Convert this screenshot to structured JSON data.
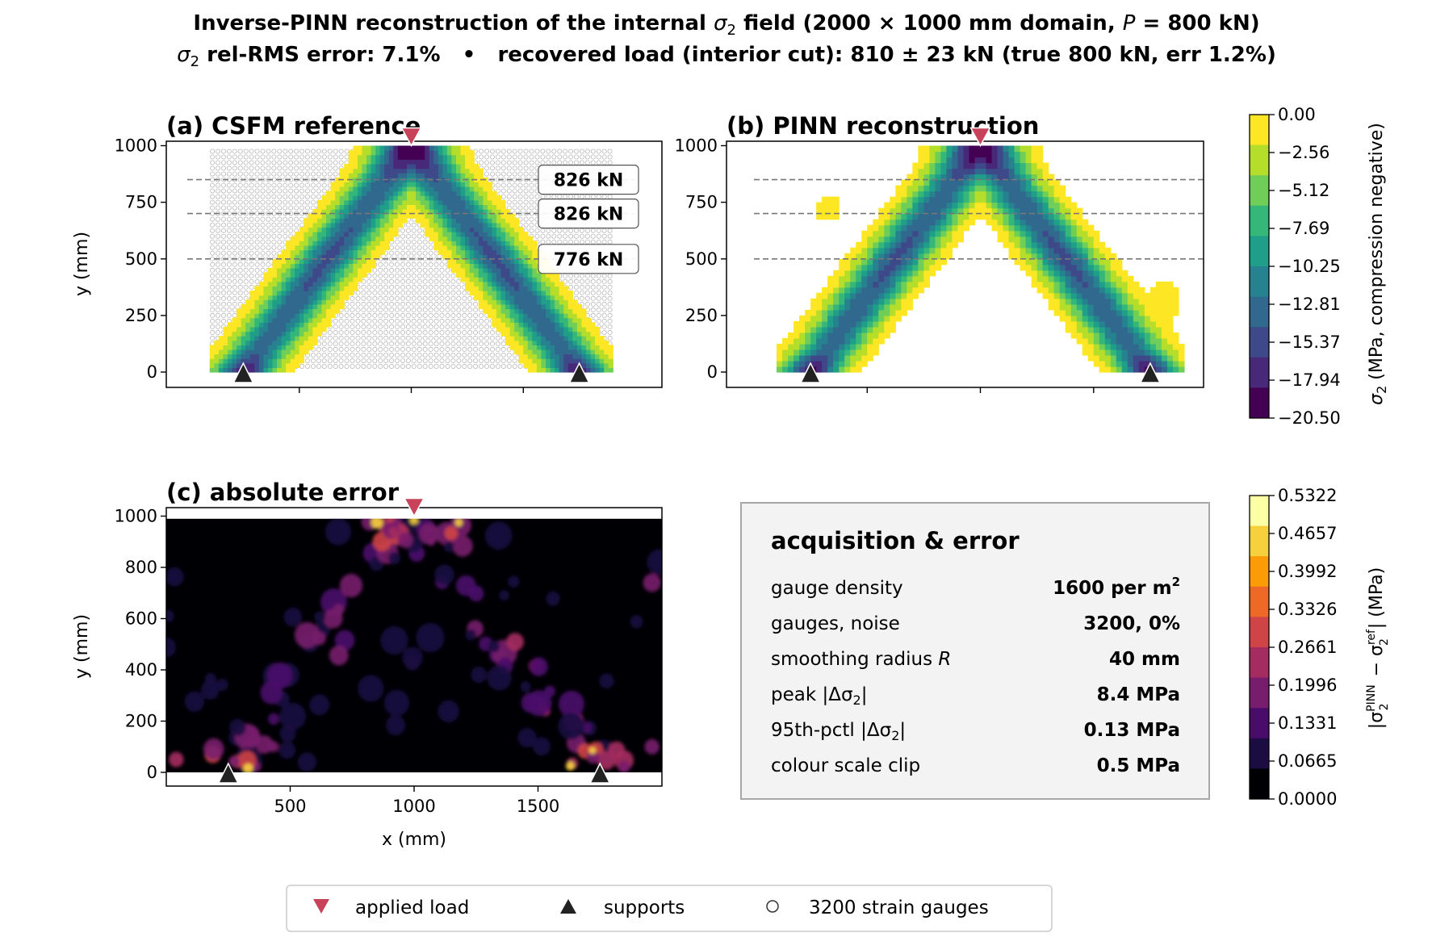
{
  "title": {
    "line1_pre": "Inverse-PINN reconstruction of the internal ",
    "line1_sym": "σ",
    "line1_sub": "2",
    "line1_post": " field (2000 × 1000 mm domain, ",
    "line1_p": "P",
    "line1_end": " = 800 kN)",
    "line2_sym": "σ",
    "line2_sub": "2",
    "line2_post": " rel-RMS error: 7.1%   •   recovered load (interior cut): 810 ± 23 kN (true 800 kN, err 1.2%)"
  },
  "panels": {
    "a": "(a)  CSFM reference",
    "b": "(b)  PINN reconstruction",
    "c": "(c)  absolute error"
  },
  "axes": {
    "ylabel": "y (mm)",
    "xlabel": "x (mm)"
  },
  "colorbar_stress": {
    "label_sym": "σ",
    "label_sub": "2",
    "label_post": " (MPa, compression negative)",
    "ticks": [
      "0.00",
      "−2.56",
      "−5.12",
      "−7.69",
      "−10.25",
      "−12.81",
      "−15.37",
      "−17.94",
      "−20.50"
    ]
  },
  "colorbar_error": {
    "label_pre": "|σ",
    "label_sup1": "PINN",
    "label_sub1": "2",
    "label_mid": " − σ",
    "label_sup2": "ref",
    "label_sub2": "2",
    "label_post": "| (MPa)",
    "ticks": [
      "0.5322",
      "0.4657",
      "0.3992",
      "0.3326",
      "0.2661",
      "0.1996",
      "0.1331",
      "0.0665",
      "0.0000"
    ]
  },
  "cut_labels": [
    "826 kN",
    "826 kN",
    "776 kN"
  ],
  "info_box": {
    "heading": "acquisition & error",
    "rows": [
      {
        "label": "gauge density",
        "value": "1600 per m",
        "value_sup": "2"
      },
      {
        "label": "gauges, noise",
        "value": "3200, 0%"
      },
      {
        "label_pre": "smoothing radius ",
        "label_ital": "R",
        "value": "40 mm"
      },
      {
        "label_pre": "peak |Δσ",
        "label_sub": "2",
        "label_post": "|",
        "value": "8.4 MPa"
      },
      {
        "label_pre": "95th-pctl |Δσ",
        "label_sub": "2",
        "label_post": "|",
        "value": "0.13 MPa"
      },
      {
        "label": "colour scale clip",
        "value": "0.5 MPa"
      }
    ]
  },
  "legend": {
    "load": "applied load",
    "supports": "supports",
    "gauges": "3200 strain gauges"
  },
  "colors": {
    "load": "#c8435a",
    "support": "#222222",
    "viridis": [
      "#fde725",
      "#b5de2b",
      "#6ece58",
      "#35b779",
      "#1f9e89",
      "#26828e",
      "#31688e",
      "#3e4989",
      "#482878",
      "#440154"
    ],
    "inferno": [
      "#000004",
      "#1b0c41",
      "#4a0c6b",
      "#781c6d",
      "#a52c60",
      "#cf4446",
      "#ed6925",
      "#fb9b06",
      "#f7d13d",
      "#fcffa4"
    ]
  },
  "chart_data": [
    {
      "type": "heatmap",
      "panel": "(a)  CSFM reference",
      "quantity": "sigma2",
      "xlim": [
        0,
        2000
      ],
      "ylim": [
        -60,
        1060
      ],
      "yticks": [
        0,
        250,
        500,
        750,
        1000
      ],
      "xticks": [
        500,
        1000,
        1500
      ],
      "applied_load": {
        "x": 1000,
        "y": 1000
      },
      "supports": [
        {
          "x": 250,
          "y": 0
        },
        {
          "x": 1750,
          "y": 0
        }
      ],
      "cut_lines_y": [
        850,
        700,
        500
      ],
      "cut_loads_kN": [
        826,
        826,
        776
      ],
      "strut_peak_MPa": -17.9
    },
    {
      "type": "heatmap",
      "panel": "(b)  PINN reconstruction",
      "quantity": "sigma2",
      "xlim": [
        0,
        2000
      ],
      "ylim": [
        -60,
        1060
      ],
      "yticks": [
        0,
        250,
        500,
        750,
        1000
      ],
      "xticks": [
        500,
        1000,
        1500
      ],
      "applied_load": {
        "x": 1000,
        "y": 1000
      },
      "supports": [
        {
          "x": 250,
          "y": 0
        },
        {
          "x": 1750,
          "y": 0
        }
      ],
      "cut_lines_y": [
        850,
        700,
        500
      ]
    },
    {
      "type": "heatmap",
      "panel": "(c)  absolute error",
      "quantity": "abs error",
      "xlim": [
        0,
        2000
      ],
      "ylim": [
        -60,
        1060
      ],
      "yticks": [
        0,
        200,
        400,
        600,
        800,
        1000
      ],
      "xticks": [
        500,
        1000,
        1500
      ],
      "clip_MPa": 0.5,
      "applied_load": {
        "x": 1000,
        "y": 1000
      },
      "supports": [
        {
          "x": 250,
          "y": 0
        },
        {
          "x": 1750,
          "y": 0
        }
      ]
    }
  ]
}
